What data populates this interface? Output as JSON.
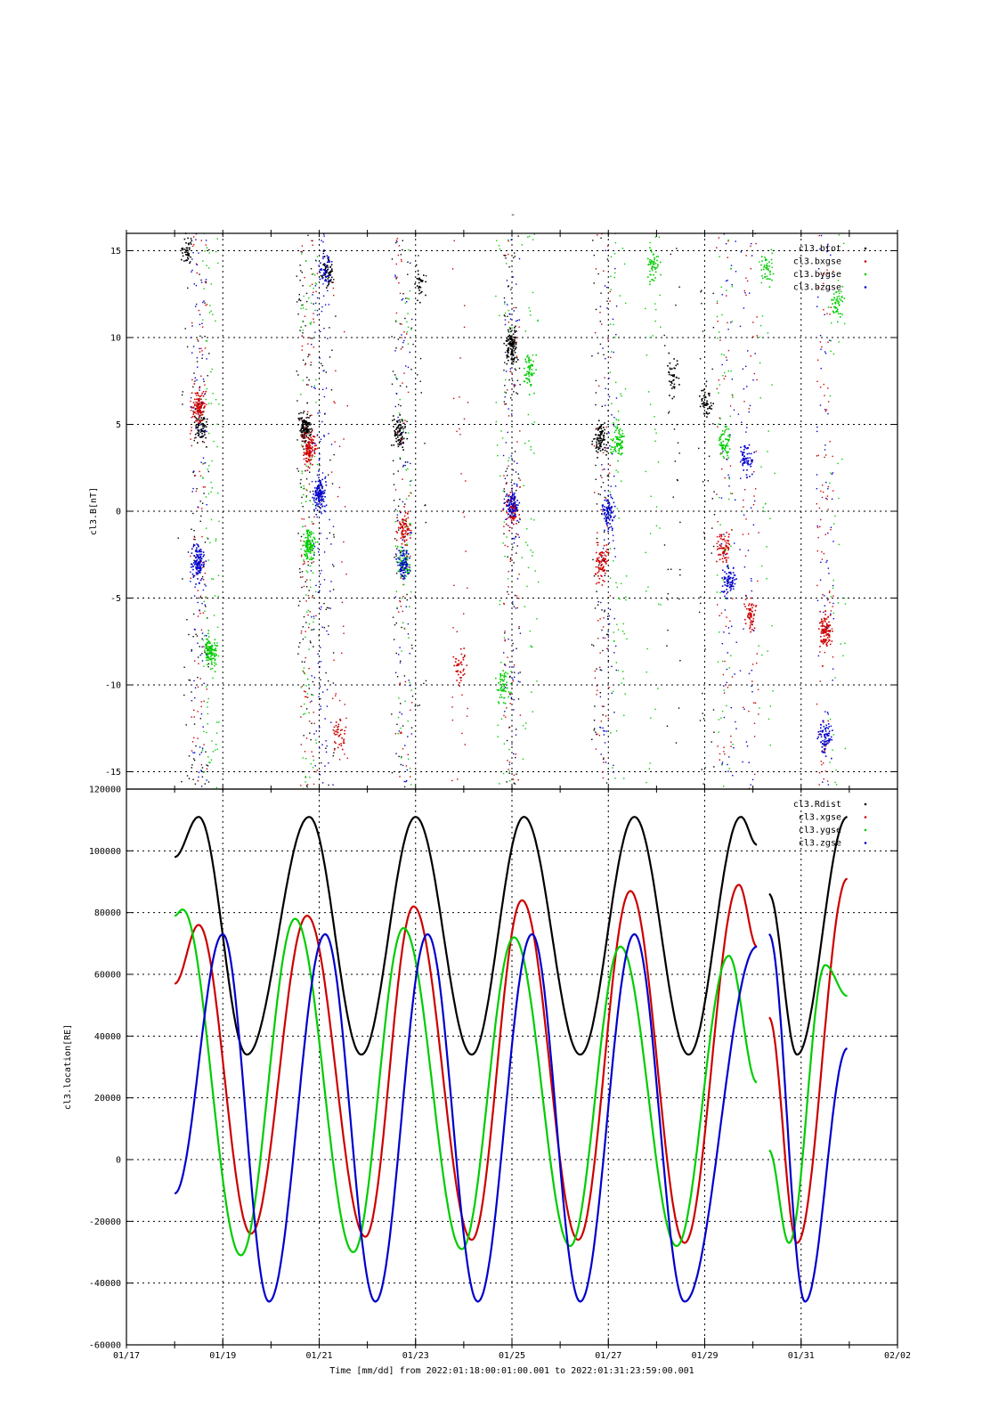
{
  "page_title": "-",
  "x_axis": {
    "label": "Time [mm/dd]  from 2022:01:18:00:01:00.001  to  2022:01:31:23:59:00.001",
    "ticks": [
      {
        "date": "2022-01-17",
        "label": "01/17"
      },
      {
        "date": "2022-01-19",
        "label": "01/19"
      },
      {
        "date": "2022-01-21",
        "label": "01/21"
      },
      {
        "date": "2022-01-23",
        "label": "01/23"
      },
      {
        "date": "2022-01-25",
        "label": "01/25"
      },
      {
        "date": "2022-01-27",
        "label": "01/27"
      },
      {
        "date": "2022-01-29",
        "label": "01/29"
      },
      {
        "date": "2022-01-31",
        "label": "01/31"
      },
      {
        "date": "2022-02-02",
        "label": "02/02"
      }
    ],
    "range": [
      "2022-01-17",
      "2022-02-02"
    ]
  },
  "chart_data": [
    {
      "type": "scatter",
      "ylabel": "cl3.B[nT]",
      "ylim": [
        -16,
        16
      ],
      "yticks": [
        -15,
        -10,
        -5,
        0,
        5,
        10,
        15
      ],
      "grid": true,
      "legend_position": "top-right",
      "data_window": [
        "2022-01-18",
        "2022-01-31T23:59"
      ],
      "series": [
        {
          "name": "cl3.btot",
          "color": "#000000",
          "clusters": [
            {
              "x": "2022-01-18T06",
              "y": 15,
              "n": 45
            },
            {
              "x": "2022-01-18T13",
              "y": 4.9,
              "n": 80
            },
            {
              "x": "2022-01-20T17",
              "y": 4.8,
              "n": 130
            },
            {
              "x": "2022-01-21T04",
              "y": 14,
              "n": 60
            },
            {
              "x": "2022-01-22T16",
              "y": 4.5,
              "n": 90
            },
            {
              "x": "2022-01-23T02",
              "y": 13,
              "n": 30
            },
            {
              "x": "2022-01-25T00",
              "y": 9.5,
              "n": 120
            },
            {
              "x": "2022-01-26T20",
              "y": 4.2,
              "n": 90
            },
            {
              "x": "2022-01-28T08",
              "y": 7.8,
              "n": 40
            },
            {
              "x": "2022-01-29T01",
              "y": 6.3,
              "n": 50
            }
          ]
        },
        {
          "name": "cl3.bxgse",
          "color": "#cc0000",
          "clusters": [
            {
              "x": "2022-01-18T12",
              "y": 6,
              "n": 110
            },
            {
              "x": "2022-01-20T19",
              "y": 3.5,
              "n": 120
            },
            {
              "x": "2022-01-21T10",
              "y": -13,
              "n": 40
            },
            {
              "x": "2022-01-22T18",
              "y": -1,
              "n": 80
            },
            {
              "x": "2022-01-23T22",
              "y": -9,
              "n": 40
            },
            {
              "x": "2022-01-25T00",
              "y": 0,
              "n": 80
            },
            {
              "x": "2022-01-26T21",
              "y": -3,
              "n": 80
            },
            {
              "x": "2022-01-29T10",
              "y": -2,
              "n": 70
            },
            {
              "x": "2022-01-29T23",
              "y": -6,
              "n": 60
            },
            {
              "x": "2022-01-31T12",
              "y": -7,
              "n": 110
            }
          ]
        },
        {
          "name": "cl3.bygse",
          "color": "#00cc00",
          "clusters": [
            {
              "x": "2022-01-18T18",
              "y": -8,
              "n": 120
            },
            {
              "x": "2022-01-20T19",
              "y": -2,
              "n": 120
            },
            {
              "x": "2022-01-22T18",
              "y": -3,
              "n": 70
            },
            {
              "x": "2022-01-24T20",
              "y": -10,
              "n": 60
            },
            {
              "x": "2022-01-25T09",
              "y": 8,
              "n": 60
            },
            {
              "x": "2022-01-27T05",
              "y": 4,
              "n": 80
            },
            {
              "x": "2022-01-27T22",
              "y": 14,
              "n": 50
            },
            {
              "x": "2022-01-29T10",
              "y": 4,
              "n": 70
            },
            {
              "x": "2022-01-30T07",
              "y": 14,
              "n": 40
            },
            {
              "x": "2022-01-31T18",
              "y": 12,
              "n": 50
            }
          ]
        },
        {
          "name": "cl3.bzgse",
          "color": "#0000cc",
          "clusters": [
            {
              "x": "2022-01-18T12",
              "y": -3,
              "n": 120
            },
            {
              "x": "2022-01-21T00",
              "y": 1,
              "n": 120
            },
            {
              "x": "2022-01-21T03",
              "y": 14,
              "n": 40
            },
            {
              "x": "2022-01-22T18",
              "y": -3,
              "n": 80
            },
            {
              "x": "2022-01-25T00",
              "y": 0.5,
              "n": 90
            },
            {
              "x": "2022-01-27T00",
              "y": 0,
              "n": 90
            },
            {
              "x": "2022-01-29T12",
              "y": -4,
              "n": 70
            },
            {
              "x": "2022-01-29T21",
              "y": 3,
              "n": 60
            },
            {
              "x": "2022-01-31T12",
              "y": -13,
              "n": 80
            }
          ]
        }
      ]
    },
    {
      "type": "line",
      "ylabel": "cl3.location[RE]",
      "ylim": [
        -60000,
        120000
      ],
      "yticks": [
        -60000,
        -40000,
        -20000,
        0,
        20000,
        40000,
        60000,
        80000,
        100000,
        120000
      ],
      "grid": true,
      "legend_position": "top-right",
      "gaps": [
        [
          "2022-01-30T02",
          "2022-01-30T08"
        ]
      ],
      "series": [
        {
          "name": "cl3.Rdist",
          "color": "#000000",
          "x": [
            "2022-01-18T00",
            "2022-01-18T12",
            "2022-01-19T12",
            "2022-01-20T19",
            "2022-01-21T21",
            "2022-01-23T00",
            "2022-01-24T04",
            "2022-01-25T06",
            "2022-01-26T10",
            "2022-01-27T13",
            "2022-01-28T16",
            "2022-01-29T18",
            "2022-01-30T02",
            "2022-01-30T08",
            "2022-01-30T22",
            "2022-01-31T23"
          ],
          "y": [
            98000,
            111000,
            34000,
            111000,
            34000,
            111000,
            34000,
            111000,
            34000,
            111000,
            34000,
            111000,
            102000,
            86000,
            34000,
            111000
          ]
        },
        {
          "name": "cl3.xgse",
          "color": "#cc0000",
          "x": [
            "2022-01-18T00",
            "2022-01-18T12",
            "2022-01-19T14",
            "2022-01-20T18",
            "2022-01-21T23",
            "2022-01-22T23",
            "2022-01-24T04",
            "2022-01-25T05",
            "2022-01-26T09",
            "2022-01-27T11",
            "2022-01-28T14",
            "2022-01-29T17",
            "2022-01-30T02",
            "2022-01-30T08",
            "2022-01-30T22",
            "2022-01-31T23"
          ],
          "y": [
            57000,
            76000,
            -24000,
            79000,
            -25000,
            82000,
            -26000,
            84000,
            -26000,
            87000,
            -27000,
            89000,
            69000,
            46000,
            -27000,
            91000
          ]
        },
        {
          "name": "cl3.ygse",
          "color": "#00cc00",
          "x": [
            "2022-01-18T00",
            "2022-01-18T04",
            "2022-01-19T09",
            "2022-01-20T12",
            "2022-01-21T17",
            "2022-01-22T18",
            "2022-01-23T23",
            "2022-01-25T01",
            "2022-01-26T05",
            "2022-01-27T06",
            "2022-01-28T10",
            "2022-01-29T12",
            "2022-01-30T02",
            "2022-01-30T08",
            "2022-01-30T18",
            "2022-01-31T12",
            "2022-01-31T23"
          ],
          "y": [
            79000,
            81000,
            -31000,
            78000,
            -30000,
            75000,
            -29000,
            72000,
            -28000,
            69000,
            -28000,
            66000,
            25000,
            3000,
            -27000,
            63000,
            53000
          ]
        },
        {
          "name": "cl3.zgse",
          "color": "#0000cc",
          "x": [
            "2022-01-18T00",
            "2022-01-19T00",
            "2022-01-19T23",
            "2022-01-21T03",
            "2022-01-22T04",
            "2022-01-23T06",
            "2022-01-24T07",
            "2022-01-25T10",
            "2022-01-26T10",
            "2022-01-27T13",
            "2022-01-28T14",
            "2022-01-30T02",
            "2022-01-30T08",
            "2022-01-31T02",
            "2022-01-31T23"
          ],
          "y": [
            -11000,
            73000,
            -46000,
            73000,
            -46000,
            73000,
            -46000,
            73000,
            -46000,
            73000,
            -46000,
            69000,
            73000,
            -46000,
            36000
          ]
        }
      ]
    }
  ]
}
